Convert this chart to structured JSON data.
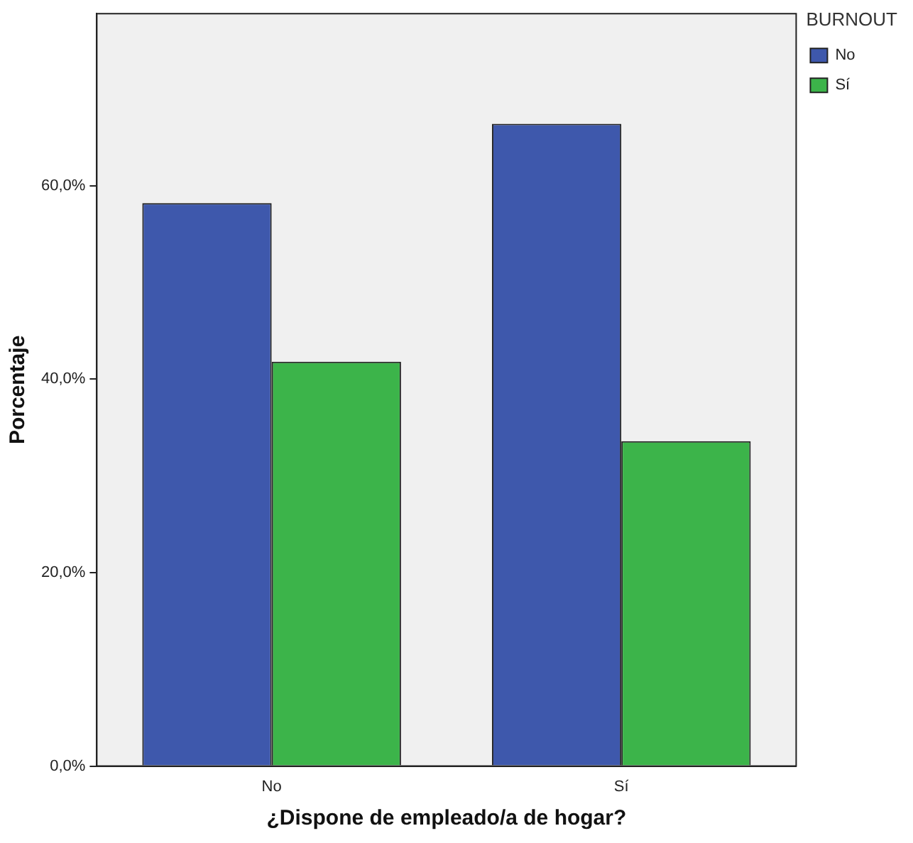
{
  "chart_data": {
    "type": "bar",
    "xlabel": "¿Dispone de empleado/a de hogar?",
    "ylabel": "Porcentaje",
    "legend_title": "BURNOUT",
    "categories": [
      "No",
      "Sí"
    ],
    "series": [
      {
        "name": "No",
        "color": "#3e58ac",
        "values": [
          58.2,
          66.4
        ]
      },
      {
        "name": "Sí",
        "color": "#3cb44a",
        "values": [
          41.8,
          33.6
        ]
      }
    ],
    "ylim": [
      0,
      77.8
    ],
    "yticks": [
      {
        "value": 0,
        "label": "0,0%"
      },
      {
        "value": 20,
        "label": "20,0%"
      },
      {
        "value": 40,
        "label": "40,0%"
      },
      {
        "value": 60,
        "label": "60,0%"
      }
    ],
    "grid": false,
    "legend": "top right"
  }
}
